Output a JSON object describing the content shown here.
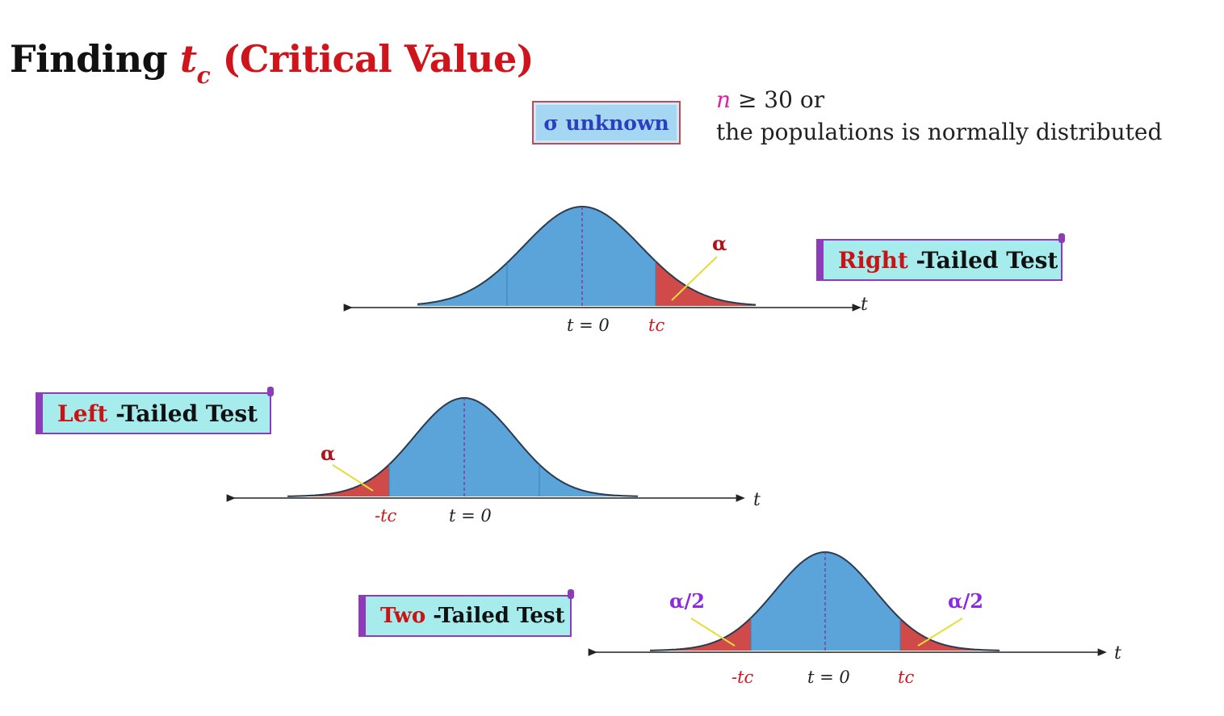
{
  "title": {
    "prefix": "Finding ",
    "var": "t",
    "sub": "c",
    "suffix": " (Critical Value)"
  },
  "sigma_box": {
    "sigma": "σ",
    "label": " unknown"
  },
  "condition": {
    "n": "n",
    "line1_rest": " ≥ 30 or",
    "line2": "the populations is normally distributed"
  },
  "tests": {
    "right": {
      "highlight": "Right",
      "rest": " -Tailed Test"
    },
    "left": {
      "highlight": "Left",
      "rest": " -Tailed Test"
    },
    "two": {
      "highlight": "Two",
      "rest": " -Tailed Test"
    }
  },
  "labels": {
    "t_axis": "t",
    "t_zero": "t = 0",
    "tc": "tc",
    "neg_tc": "-tc",
    "alpha": "α",
    "alpha_half": "α/2"
  },
  "colors": {
    "curve_fill": "#5ba4da",
    "tail_fill": "#d14a4a",
    "curve_stroke": "#2c3a4e",
    "pointer": "#e6dc3c",
    "red": "#d0141c",
    "purple": "#8a2be2"
  }
}
